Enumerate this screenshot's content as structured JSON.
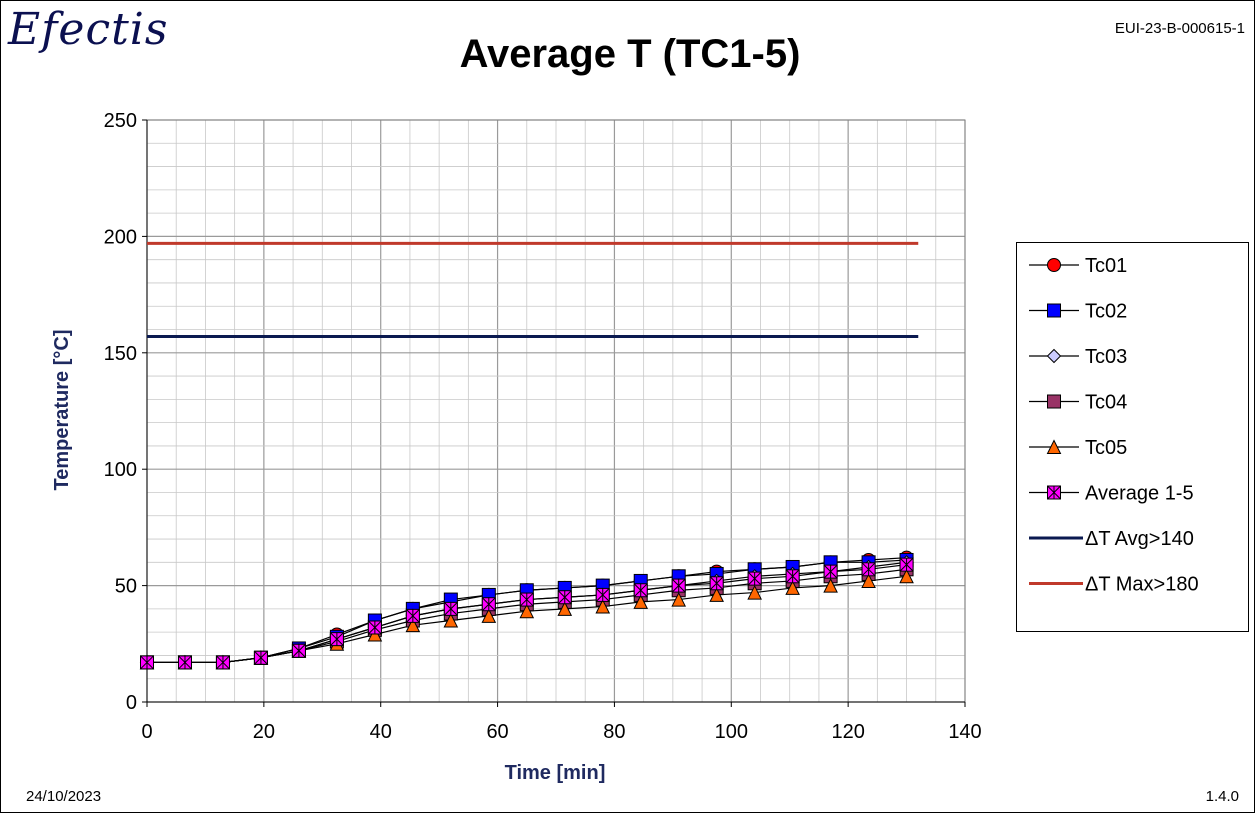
{
  "header": {
    "logo_text": "Efectis",
    "report_id": "EUI-23-B-000615-1"
  },
  "footer": {
    "date": "24/10/2023",
    "version": "1.4.0"
  },
  "colors": {
    "tc01": "#ff0000",
    "tc02": "#0000ff",
    "tc03": "#ccccff",
    "tc04": "#993366",
    "tc05": "#ff6600",
    "average": "#ff00ff",
    "avg_threshold": "#0b1a50",
    "max_threshold": "#c0392b"
  },
  "chart_data": {
    "type": "line",
    "title": "Average T (TC1-5)",
    "xlabel": "Time [min]",
    "ylabel": "Temperature [°C]",
    "xlim": [
      0,
      140
    ],
    "ylim": [
      0,
      250
    ],
    "xticks": [
      "0",
      "20",
      "40",
      "60",
      "80",
      "100",
      "120",
      "140"
    ],
    "yticks": [
      "0",
      "50",
      "100",
      "150",
      "200",
      "250"
    ],
    "grid": true,
    "legend_position": "right",
    "x": [
      0,
      6.5,
      13,
      19.5,
      26,
      32.5,
      39,
      45.5,
      52,
      58.5,
      65,
      71.5,
      78,
      84.5,
      91,
      97.5,
      104,
      110.5,
      117,
      123.5,
      130
    ],
    "series": [
      {
        "name": "Tc01",
        "marker": "circle",
        "values": [
          17,
          17,
          17,
          19,
          23,
          29,
          35,
          40,
          43,
          46,
          48,
          49,
          50,
          52,
          54,
          56,
          57,
          58,
          60,
          61,
          62
        ]
      },
      {
        "name": "Tc02",
        "marker": "square",
        "values": [
          17,
          17,
          17,
          19,
          23,
          28,
          35,
          40,
          44,
          46,
          48,
          49,
          50,
          52,
          54,
          55,
          57,
          58,
          60,
          60,
          61
        ]
      },
      {
        "name": "Tc03",
        "marker": "diamond",
        "values": [
          17,
          17,
          17,
          19,
          22,
          27,
          32,
          37,
          40,
          42,
          44,
          45,
          46,
          48,
          50,
          52,
          54,
          55,
          56,
          58,
          60
        ]
      },
      {
        "name": "Tc04",
        "marker": "square",
        "values": [
          17,
          17,
          17,
          19,
          22,
          26,
          31,
          35,
          38,
          40,
          42,
          43,
          44,
          46,
          48,
          49,
          51,
          52,
          54,
          55,
          57
        ]
      },
      {
        "name": "Tc05",
        "marker": "triangle",
        "values": [
          17,
          17,
          17,
          19,
          22,
          25,
          29,
          33,
          35,
          37,
          39,
          40,
          41,
          43,
          44,
          46,
          47,
          49,
          50,
          52,
          54
        ]
      },
      {
        "name": "Average 1-5",
        "marker": "star",
        "values": [
          17,
          17,
          17,
          19,
          22,
          27,
          32,
          37,
          40,
          42,
          44,
          45,
          46,
          48,
          50,
          51,
          53,
          54,
          56,
          57,
          59
        ]
      }
    ],
    "thresholds": [
      {
        "name": "ΔT Avg>140",
        "y": 157,
        "x_range": [
          0,
          132
        ]
      },
      {
        "name": "ΔT Max>180",
        "y": 197,
        "x_range": [
          0,
          132
        ]
      }
    ]
  }
}
